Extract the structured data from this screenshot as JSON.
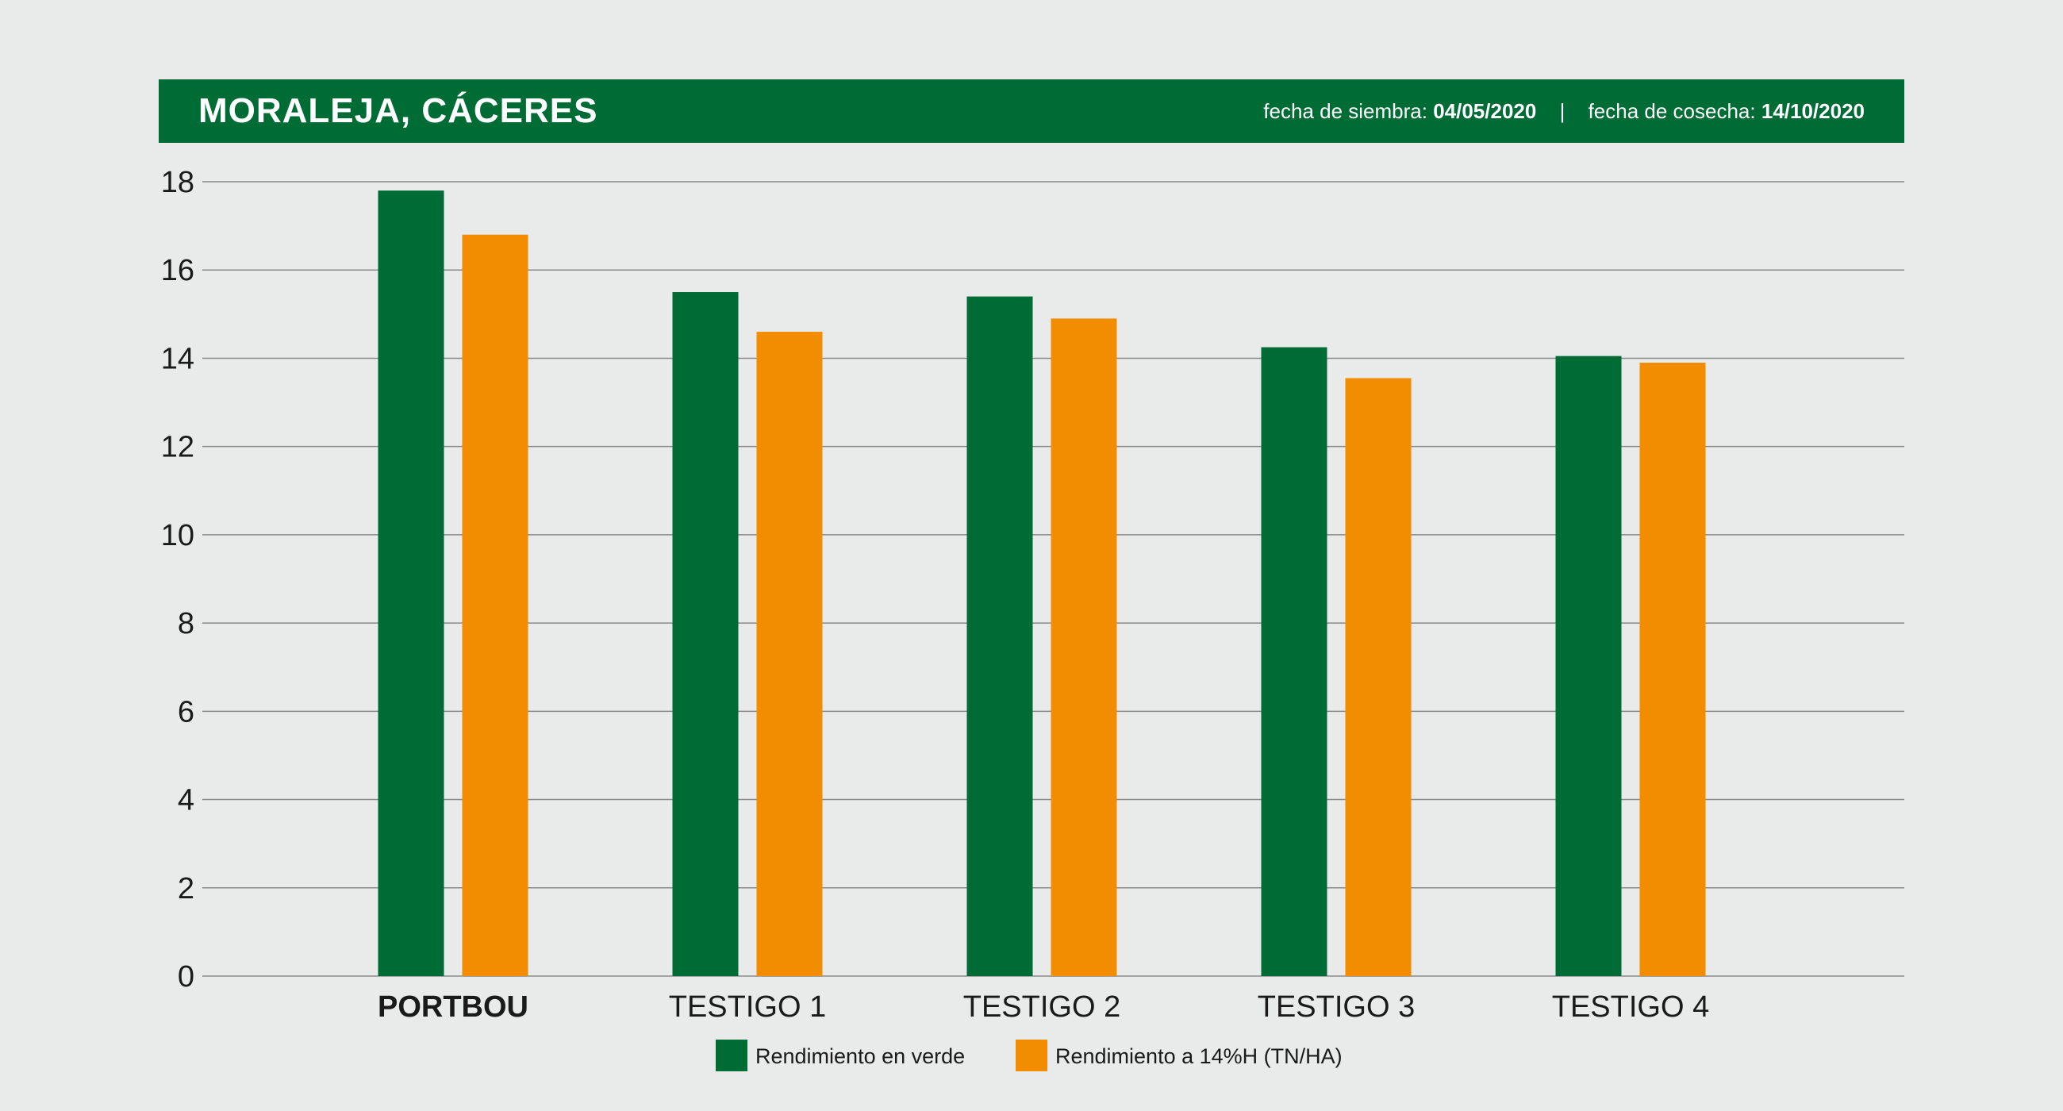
{
  "header": {
    "title": "MORALEJA, CÁCERES",
    "sowing_label": "fecha de siembra:",
    "sowing_date": "04/05/2020",
    "separator": "|",
    "harvest_label": "fecha de cosecha:",
    "harvest_date": "14/10/2020"
  },
  "colors": {
    "header_bg": "#006c35",
    "series_green": "#006c35",
    "series_orange": "#f28c00",
    "background": "#e9eaea",
    "gridline": "#8a8a8a"
  },
  "chart_data": {
    "type": "bar",
    "title": "",
    "xlabel": "",
    "ylabel": "",
    "ylim": [
      0,
      18
    ],
    "yticks": [
      0,
      2,
      4,
      6,
      8,
      10,
      12,
      14,
      16,
      18
    ],
    "grid": true,
    "legend_position": "bottom-center",
    "categories": [
      "PORTBOU",
      "TESTIGO 1",
      "TESTIGO 2",
      "TESTIGO 3",
      "TESTIGO 4"
    ],
    "bold_category": "PORTBOU",
    "series": [
      {
        "name": "Rendimiento en verde",
        "color": "#006c35",
        "values": [
          17.8,
          15.5,
          15.4,
          14.25,
          14.05
        ]
      },
      {
        "name": "Rendimiento a 14%H (TN/HA)",
        "color": "#f28c00",
        "values": [
          16.8,
          14.6,
          14.9,
          13.55,
          13.9
        ]
      }
    ]
  }
}
